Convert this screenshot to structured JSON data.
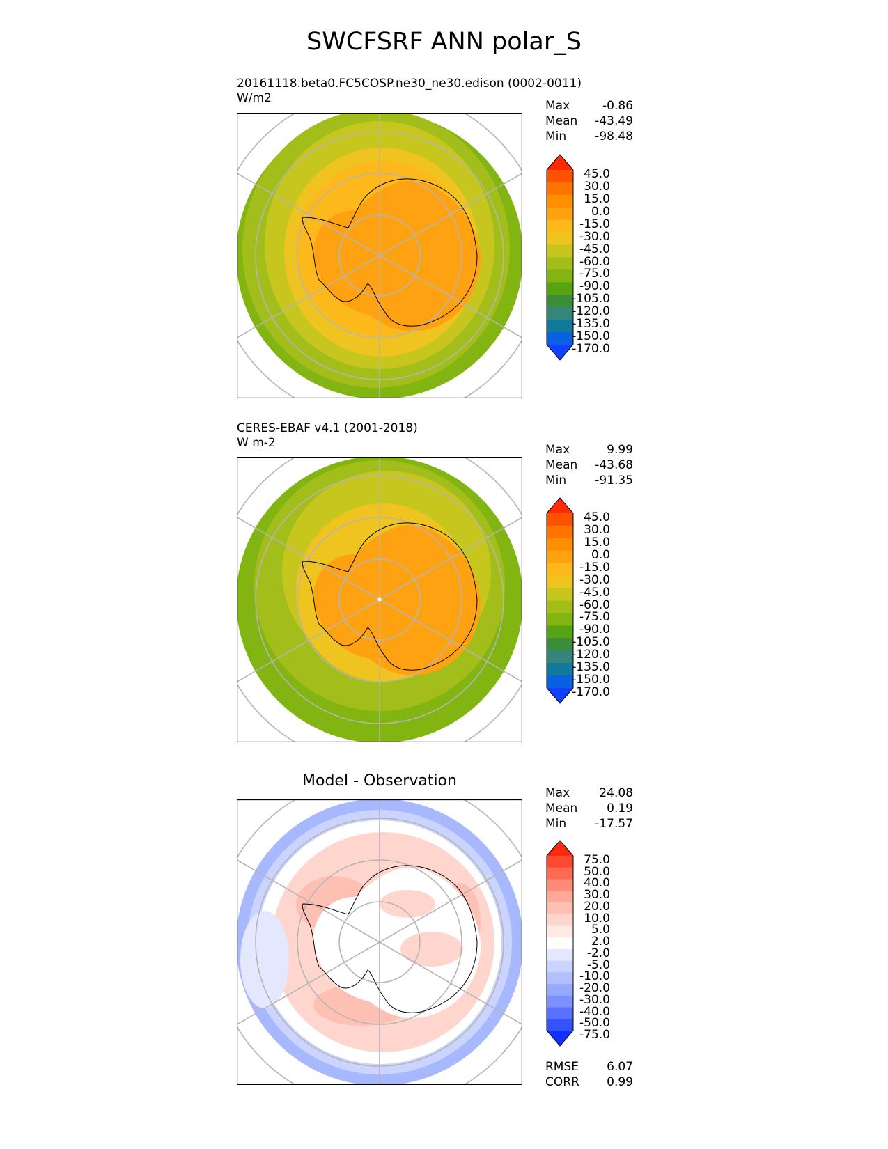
{
  "figure": {
    "title": "SWCFSRF ANN polar_S"
  },
  "panels": [
    {
      "id": "test",
      "heading": "20161118.beta0.FC5COSP.ne30_ne30.edison (0002-0011)",
      "units": "W/m2",
      "stats": [
        {
          "label": "Max",
          "value": "-0.86"
        },
        {
          "label": "Mean",
          "value": "-43.49"
        },
        {
          "label": "Min",
          "value": "-98.48"
        }
      ],
      "colorbar": {
        "labels": [
          "45.0",
          "30.0",
          "15.0",
          "0.0",
          "-15.0",
          "-30.0",
          "-45.0",
          "-60.0",
          "-75.0",
          "-90.0",
          "-105.0",
          "-120.0",
          "-135.0",
          "-150.0",
          "-170.0"
        ],
        "colors": [
          "#ff2a00",
          "#ff5200",
          "#ff7400",
          "#ff8f00",
          "#ffa212",
          "#fdb81c",
          "#f0c420",
          "#c6c61e",
          "#a3be1a",
          "#82b412",
          "#56a314",
          "#3a8e3a",
          "#35857a",
          "#0f7a9a",
          "#0a60e0",
          "#1140ff"
        ]
      }
    },
    {
      "id": "reference",
      "heading": "CERES-EBAF v4.1 (2001-2018)",
      "units": "W m-2",
      "stats": [
        {
          "label": "Max",
          "value": "9.99"
        },
        {
          "label": "Mean",
          "value": "-43.68"
        },
        {
          "label": "Min",
          "value": "-91.35"
        }
      ],
      "colorbar": {
        "labels": [
          "45.0",
          "30.0",
          "15.0",
          "0.0",
          "-15.0",
          "-30.0",
          "-45.0",
          "-60.0",
          "-75.0",
          "-90.0",
          "-105.0",
          "-120.0",
          "-135.0",
          "-150.0",
          "-170.0"
        ],
        "colors": [
          "#ff2a00",
          "#ff5200",
          "#ff7400",
          "#ff8f00",
          "#ffa212",
          "#fdb81c",
          "#f0c420",
          "#c6c61e",
          "#a3be1a",
          "#82b412",
          "#56a314",
          "#3a8e3a",
          "#35857a",
          "#0f7a9a",
          "#0a60e0",
          "#1140ff"
        ]
      }
    },
    {
      "id": "difference",
      "heading": "Model - Observation",
      "stats": [
        {
          "label": "Max",
          "value": "24.08"
        },
        {
          "label": "Mean",
          "value": "0.19"
        },
        {
          "label": "Min",
          "value": "-17.57"
        }
      ],
      "colorbar": {
        "labels": [
          "75.0",
          "50.0",
          "40.0",
          "30.0",
          "20.0",
          "10.0",
          "5.0",
          "2.0",
          "-2.0",
          "-5.0",
          "-10.0",
          "-20.0",
          "-30.0",
          "-40.0",
          "-50.0",
          "-75.0"
        ],
        "colors": [
          "#ff2a0f",
          "#ff4a30",
          "#ff6a52",
          "#ff8a75",
          "#ffa898",
          "#ffc0b4",
          "#ffd6ce",
          "#ffeae6",
          "#ffffff",
          "#e4e8ff",
          "#cad4ff",
          "#b2c0ff",
          "#97a8ff",
          "#7c90ff",
          "#5a70ff",
          "#3552ff",
          "#0f30ff"
        ]
      },
      "metrics": [
        {
          "label": "RMSE",
          "value": "6.07"
        },
        {
          "label": "CORR",
          "value": "0.99"
        }
      ]
    }
  ]
}
